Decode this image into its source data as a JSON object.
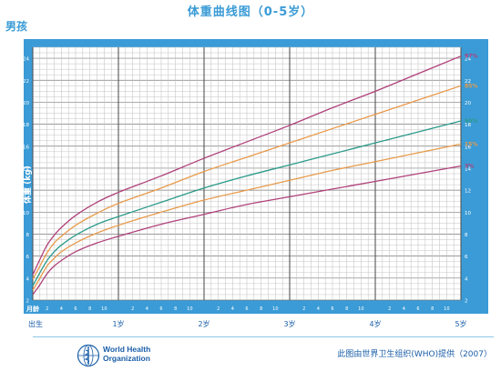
{
  "header": {
    "title": "体重曲线图（0-5岁）",
    "gender": "男孩"
  },
  "footer": {
    "org_line1": "World Health",
    "org_line2": "Organization",
    "source": "此图由世界卫生组织(WHO)提供（2007）"
  },
  "colors": {
    "frame": "#3a9bd6",
    "grid": "#9a9a9a",
    "p97": "#b0407a",
    "p85": "#e89a4a",
    "p50": "#2a9a8a",
    "p15": "#e89a4a",
    "p3": "#b0407a"
  },
  "chart_data": {
    "type": "line",
    "ylabel": "体重 (kg)",
    "xlabel_corner": "月龄",
    "ylim": [
      2,
      25
    ],
    "xlim": [
      0,
      60
    ],
    "y_ticks": [
      2,
      4,
      6,
      8,
      10,
      12,
      14,
      16,
      18,
      20,
      22,
      24
    ],
    "x_year_labels": [
      {
        "x": 0,
        "label": "出生"
      },
      {
        "x": 12,
        "label": "1岁"
      },
      {
        "x": 24,
        "label": "2岁"
      },
      {
        "x": 36,
        "label": "3岁"
      },
      {
        "x": 48,
        "label": "4岁"
      },
      {
        "x": 60,
        "label": "5岁"
      }
    ],
    "x_month_labels": [
      "2",
      "4",
      "6",
      "8",
      "10"
    ],
    "grid": true,
    "series": [
      {
        "name": "97%",
        "x": [
          0,
          1,
          2,
          3,
          4,
          6,
          9,
          12,
          18,
          24,
          30,
          36,
          42,
          48,
          54,
          60
        ],
        "values": [
          4.3,
          5.7,
          7.0,
          7.9,
          8.6,
          9.7,
          10.9,
          11.8,
          13.3,
          14.9,
          16.4,
          17.9,
          19.5,
          21.0,
          22.6,
          24.2
        ]
      },
      {
        "name": "85%",
        "x": [
          0,
          1,
          2,
          3,
          4,
          6,
          9,
          12,
          18,
          24,
          30,
          36,
          42,
          48,
          54,
          60
        ],
        "values": [
          3.9,
          5.1,
          6.3,
          7.2,
          7.8,
          8.8,
          9.9,
          10.8,
          12.2,
          13.7,
          15.0,
          16.3,
          17.6,
          18.9,
          20.2,
          21.5
        ]
      },
      {
        "name": "50%",
        "x": [
          0,
          1,
          2,
          3,
          4,
          6,
          9,
          12,
          18,
          24,
          30,
          36,
          42,
          48,
          54,
          60
        ],
        "values": [
          3.3,
          4.5,
          5.6,
          6.4,
          7.0,
          7.9,
          8.9,
          9.6,
          10.9,
          12.2,
          13.3,
          14.3,
          15.3,
          16.3,
          17.3,
          18.3
        ]
      },
      {
        "name": "15%",
        "x": [
          0,
          1,
          2,
          3,
          4,
          6,
          9,
          12,
          18,
          24,
          30,
          36,
          42,
          48,
          54,
          60
        ],
        "values": [
          2.9,
          4.0,
          5.1,
          5.8,
          6.4,
          7.2,
          8.1,
          8.8,
          10.0,
          11.1,
          12.0,
          12.9,
          13.8,
          14.6,
          15.4,
          16.2
        ]
      },
      {
        "name": "3%",
        "x": [
          0,
          1,
          2,
          3,
          4,
          6,
          9,
          12,
          18,
          24,
          30,
          36,
          42,
          48,
          54,
          60
        ],
        "values": [
          2.5,
          3.4,
          4.4,
          5.1,
          5.6,
          6.4,
          7.2,
          7.8,
          8.9,
          9.8,
          10.7,
          11.4,
          12.1,
          12.8,
          13.5,
          14.2
        ]
      }
    ]
  }
}
